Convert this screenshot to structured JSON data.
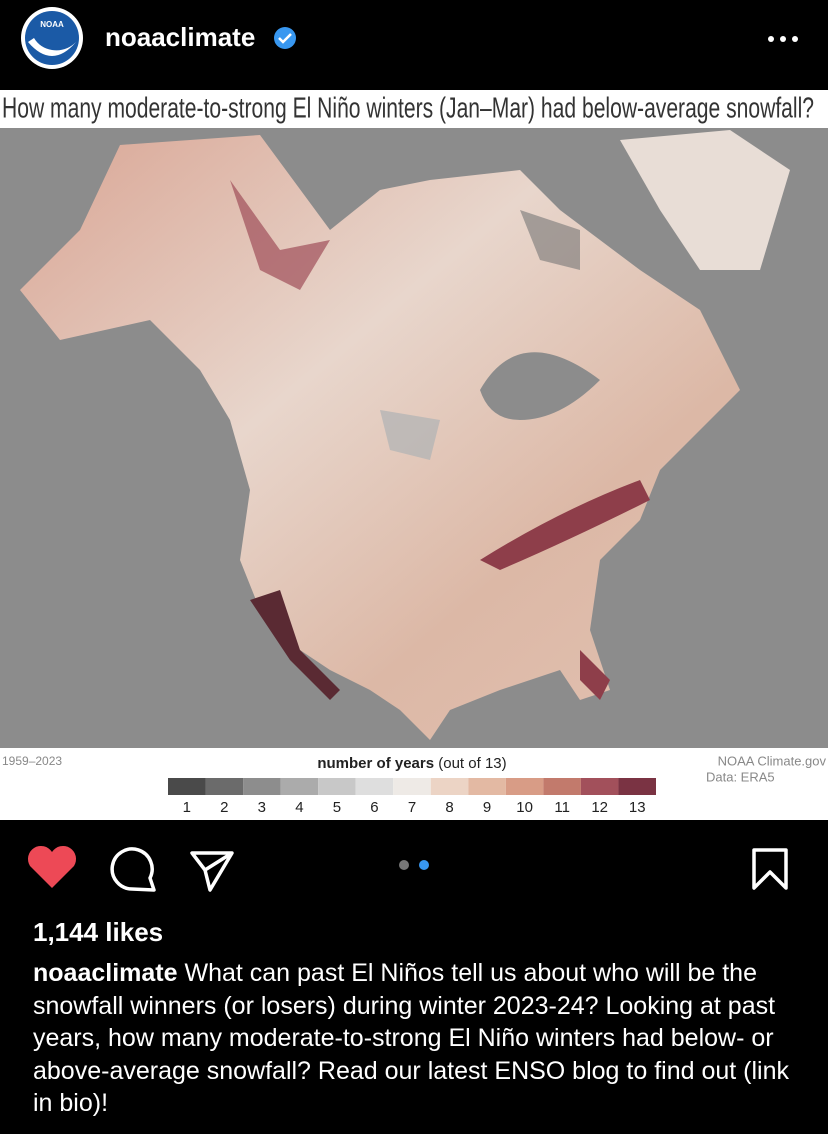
{
  "header": {
    "logo": "NOAA",
    "username": "noaaclimate"
  },
  "post_image": {
    "title": "How many moderate-to-strong El Niño winters (Jan–Mar) had below-average snowfall?",
    "period": "1959–2023",
    "legend": {
      "title": "number of years",
      "subtitle": "(out of 13)",
      "items": [
        {
          "label": 1,
          "color": "#4a4a4a"
        },
        {
          "label": 2,
          "color": "#6b6b6b"
        },
        {
          "label": 3,
          "color": "#8d8d8d"
        },
        {
          "label": 4,
          "color": "#ababab"
        },
        {
          "label": 5,
          "color": "#c8c8c8"
        },
        {
          "label": 6,
          "color": "#dedede"
        },
        {
          "label": 7,
          "color": "#eeeae6"
        },
        {
          "label": 8,
          "color": "#ecd4c5"
        },
        {
          "label": 9,
          "color": "#e3b9a3"
        },
        {
          "label": 10,
          "color": "#d89c86"
        },
        {
          "label": 11,
          "color": "#c27a6c"
        },
        {
          "label": 12,
          "color": "#a2505b"
        },
        {
          "label": 13,
          "color": "#7a3343"
        }
      ]
    },
    "credit": "NOAA Climate.gov",
    "source": "Data: ERA5"
  },
  "likes": "1,144 likes",
  "caption": {
    "username": "noaaclimate",
    "text": "What can past El Niños tell us about who will be the snowfall winners (or losers) during winter 2023-24? Looking at past years, how many moderate-to-strong El Niño winters had below- or above-average snowfall? Read our latest ENSO blog to find out (link in bio)!"
  }
}
